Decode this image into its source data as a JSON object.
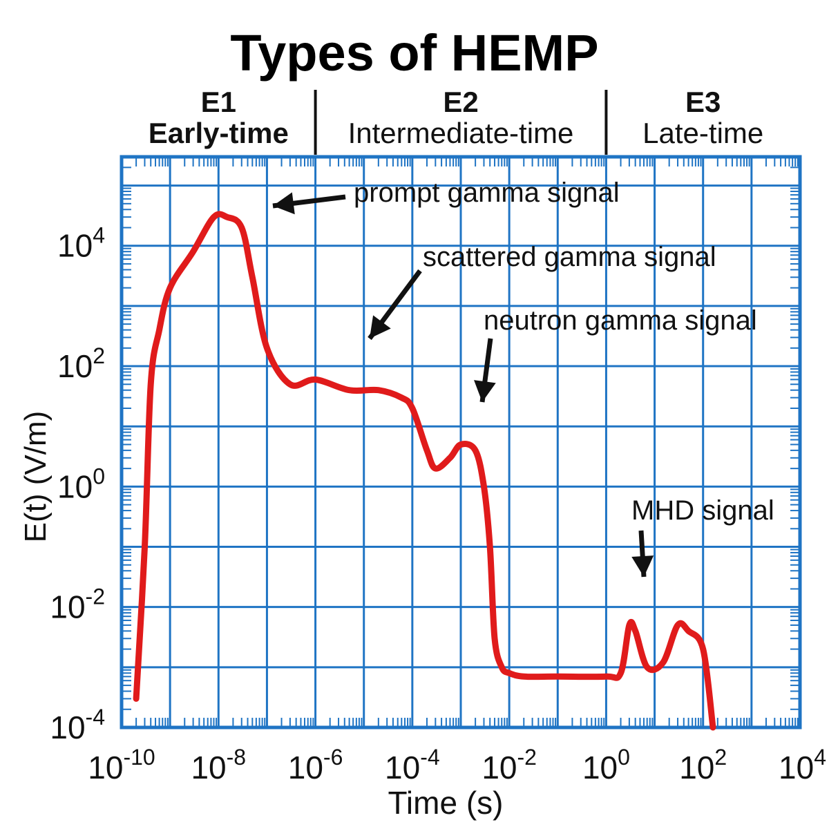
{
  "chart_data": {
    "type": "line",
    "title": "Types of HEMP",
    "xlabel": "Time (s)",
    "ylabel": "E(t) (V/m)",
    "x_scale": "log",
    "y_scale": "log",
    "xlim": [
      1e-10,
      10000
    ],
    "ylim": [
      0.0001,
      300000
    ],
    "x_ticks": [
      {
        "base": "10",
        "exp": "-10",
        "value": 1e-10
      },
      {
        "base": "10",
        "exp": "-8",
        "value": 1e-08
      },
      {
        "base": "10",
        "exp": "-6",
        "value": 1e-06
      },
      {
        "base": "10",
        "exp": "-4",
        "value": 0.0001
      },
      {
        "base": "10",
        "exp": "-2",
        "value": 0.01
      },
      {
        "base": "10",
        "exp": "0",
        "value": 1
      },
      {
        "base": "10",
        "exp": "2",
        "value": 100
      },
      {
        "base": "10",
        "exp": "4",
        "value": 10000
      }
    ],
    "y_ticks": [
      {
        "base": "10",
        "exp": "-4",
        "value": 0.0001
      },
      {
        "base": "10",
        "exp": "-2",
        "value": 0.01
      },
      {
        "base": "10",
        "exp": "0",
        "value": 1
      },
      {
        "base": "10",
        "exp": "2",
        "value": 100
      },
      {
        "base": "10",
        "exp": "4",
        "value": 10000
      }
    ],
    "grid": true,
    "colors": {
      "curve": "#e01b1b",
      "grid": "#1f74c4",
      "text": "#111111"
    },
    "regions": [
      {
        "name": "E1",
        "label": "Early-time",
        "x_start": 1e-10,
        "x_end": 1e-06
      },
      {
        "name": "E2",
        "label": "Intermediate-time",
        "x_start": 1e-06,
        "x_end": 1
      },
      {
        "name": "E3",
        "label": "Late-time",
        "x_start": 1,
        "x_end": 10000
      }
    ],
    "series": [
      {
        "x": [
          2e-10,
          3e-10,
          4e-10,
          6e-10,
          1e-09,
          3e-09,
          8e-09,
          1.5e-08,
          3e-08,
          5e-08,
          1e-07,
          3e-07,
          1e-06,
          5e-06,
          2e-05,
          6e-05,
          0.0001,
          0.0002,
          0.0003,
          0.0006,
          0.001,
          0.002,
          0.003,
          0.004,
          0.005,
          0.007,
          0.01,
          0.02,
          0.1,
          1,
          2,
          3,
          4,
          7,
          15.0,
          30.0,
          50.0,
          100.0,
          160.0
        ],
        "y": [
          0.0003,
          0.1,
          50,
          400,
          2000,
          8000,
          30000,
          30000,
          20000,
          3000,
          200,
          50,
          60,
          40,
          40,
          30,
          20,
          4,
          2,
          3,
          5,
          4,
          1,
          0.1,
          0.003,
          0.001,
          0.0008,
          0.0007,
          0.0007,
          0.0007,
          0.0008,
          0.005,
          0.004,
          0.001,
          0.0012,
          0.005,
          0.004,
          0.002,
          0.0001
        ]
      }
    ],
    "annotations": [
      {
        "text": "prompt gamma signal",
        "x": 3e-08,
        "y": 10000
      },
      {
        "text": "scattered gamma signal",
        "x": 4e-06,
        "y": 100
      },
      {
        "text": "neutron gamma signal",
        "x": 0.0008,
        "y": 10
      },
      {
        "text": "MHD signal",
        "x": 2,
        "y": 0.01
      }
    ]
  }
}
